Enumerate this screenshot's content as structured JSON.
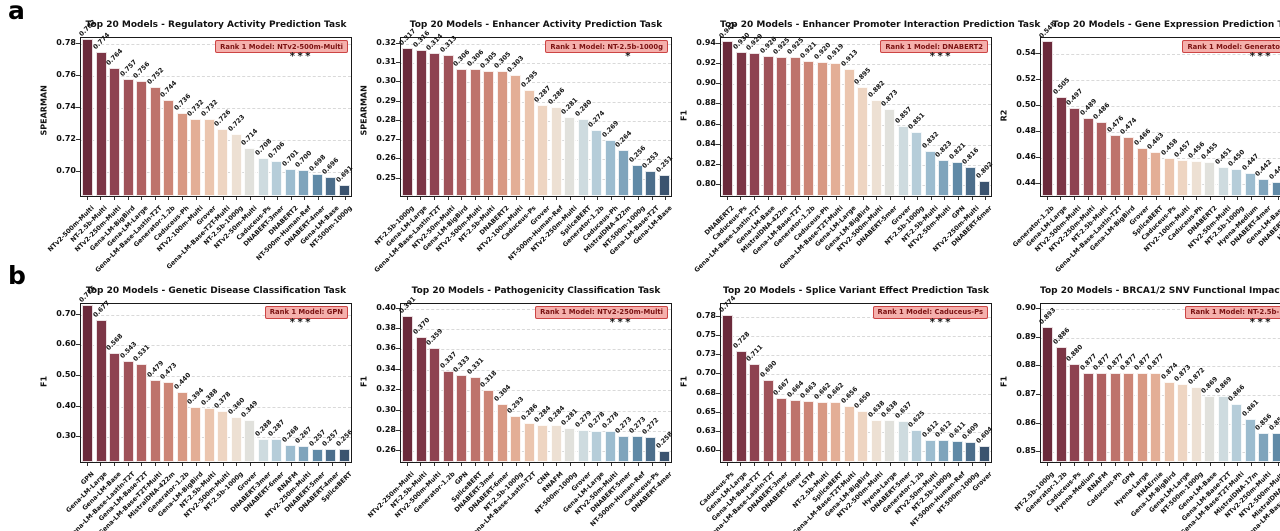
{
  "figure": {
    "panel_a": "a",
    "panel_b": "b"
  },
  "badge_prefix": "Rank 1 Model: ",
  "style": {
    "badge_bg": "#f5b0ac",
    "badge_border": "#cc4444",
    "badge_text": "#7a1212",
    "grid_color": "#d9d9d9",
    "palette_anchors": [
      "#6b2a3b",
      "#8c4050",
      "#ad5f60",
      "#c87f72",
      "#e0a58c",
      "#efd0ba",
      "#ece4da",
      "#c8d9e0",
      "#97b9cd",
      "#5d87a5",
      "#3a536f"
    ]
  },
  "chart_data": [
    {
      "type": "bar",
      "title": "Top 20 Models - Regulatory Activity Prediction Task",
      "ylabel": "SPEARMAN",
      "rank1": "NTv2-500m-Multi",
      "significance": "***",
      "ylim": [
        0.684,
        0.784
      ],
      "yticks": [
        0.7,
        0.72,
        0.74,
        0.76,
        0.78
      ],
      "ytick_labels": [
        "0.70",
        "0.72",
        "0.74",
        "0.76",
        "0.78"
      ],
      "categories": [
        "NTv2-500m-Multi",
        "NT-2.5b-Multi",
        "NTv2-250m-Multi",
        "Gena-LM-BigBird",
        "Gena-LM-Large",
        "Gena-LM-Base-Lastln-T2T",
        "Generator-1.2b",
        "Caduceus-Ph",
        "NTv2-100m-Multi",
        "Grover",
        "Gena-LM-Base-T2T-Multi",
        "NT-2.5b-1000g",
        "NTv2-50m-Multi",
        "Caduceus-Ps",
        "DNABERT-3mer",
        "DNABERT2",
        "NT-500m-Human-Ref",
        "DNABERT-4mer",
        "Gena-LM-Base",
        "NT-500m-1000g"
      ],
      "values": [
        0.782,
        0.774,
        0.764,
        0.757,
        0.756,
        0.752,
        0.744,
        0.736,
        0.732,
        0.732,
        0.726,
        0.723,
        0.714,
        0.708,
        0.706,
        0.701,
        0.7,
        0.698,
        0.696,
        0.691
      ]
    },
    {
      "type": "bar",
      "title": "Top 20 Models - Enhancer Activity Prediction Task",
      "ylabel": "SPEARMAN",
      "rank1": "NT-2.5b-1000g",
      "significance": "*",
      "ylim": [
        0.24,
        0.323
      ],
      "yticks": [
        0.25,
        0.26,
        0.27,
        0.28,
        0.29,
        0.3,
        0.31,
        0.32
      ],
      "ytick_labels": [
        "0.25",
        "0.26",
        "0.27",
        "0.28",
        "0.29",
        "0.30",
        "0.31",
        "0.32"
      ],
      "categories": [
        "NT-2.5b-1000g",
        "Gena-LM-Large",
        "Gena-LM-Base-Lastln-T2T",
        "NTv2-50m-Multi",
        "Gena-LM-BigBird",
        "NTv2-500m-Multi",
        "NT-2.5b-Multi",
        "DNABERT2",
        "NTv2-100m-Multi",
        "Caduceus-Ps",
        "Grover",
        "NT-500m-Human-Ref",
        "NTv2-250m-Multi",
        "SpliceBERT",
        "Generator-1.2b",
        "Caduceus-Ph",
        "MistralDNA-422m",
        "NT-500m-1000g",
        "Gena-LM-Base-T2T",
        "Gena-LM-Base"
      ],
      "values": [
        0.317,
        0.316,
        0.314,
        0.313,
        0.306,
        0.306,
        0.305,
        0.305,
        0.303,
        0.295,
        0.287,
        0.286,
        0.281,
        0.28,
        0.274,
        0.269,
        0.264,
        0.256,
        0.253,
        0.251
      ]
    },
    {
      "type": "bar",
      "title": "Top 20 Models - Enhancer Promoter Interaction Prediction Task",
      "ylabel": "F1",
      "rank1": "DNABERT2",
      "significance": "***",
      "ylim": [
        0.787,
        0.946
      ],
      "yticks": [
        0.8,
        0.82,
        0.84,
        0.86,
        0.88,
        0.9,
        0.92,
        0.94
      ],
      "ytick_labels": [
        "0.80",
        "0.82",
        "0.84",
        "0.86",
        "0.88",
        "0.90",
        "0.92",
        "0.94"
      ],
      "categories": [
        "DNABERT2",
        "Caduceus-Ps",
        "Gena-LM-Base-Lastln-T2T",
        "Gena-LM-Base",
        "MistralDNA-422m",
        "Gena-LM-Base-T2T",
        "Generator-1.2b",
        "Caduceus-Ph",
        "Gena-LM-Base-T2T-Multi",
        "Gena-LM-Large",
        "Gena-LM-BigBird",
        "NTv2-500m-Multi",
        "DNABERT-5mer",
        "Grover",
        "NT-2.5b-1000g",
        "NT-2.5b-Multi",
        "NTv2-50m-Multi",
        "GPN",
        "NTv2-250m-Multi",
        "DNABERT-6mer"
      ],
      "values": [
        0.941,
        0.93,
        0.929,
        0.926,
        0.925,
        0.925,
        0.921,
        0.92,
        0.919,
        0.913,
        0.895,
        0.882,
        0.873,
        0.857,
        0.851,
        0.832,
        0.823,
        0.821,
        0.816,
        0.802
      ]
    },
    {
      "type": "bar",
      "title": "Top 20 Models - Gene Expression Prediction Task",
      "ylabel": "R2",
      "rank1": "Generator-1.2b",
      "significance": "***",
      "ylim": [
        0.429,
        0.552
      ],
      "yticks": [
        0.44,
        0.46,
        0.48,
        0.5,
        0.52,
        0.54
      ],
      "ytick_labels": [
        "0.44",
        "0.46",
        "0.48",
        "0.50",
        "0.52",
        "0.54"
      ],
      "categories": [
        "Generator-1.2b",
        "Gena-LM-Large",
        "NTv2-500m-Multi",
        "NTv2-250m-Multi",
        "NT-2.5b-Multi",
        "Gena-LM-Base-Lastln-T2T",
        "Gena-LM-BigBird",
        "Grover",
        "SpliceBERT",
        "Caduceus-Ps",
        "NTv2-100m-Multi",
        "Caduceus-Ph",
        "DNABERT2",
        "NTv2-50m-Multi",
        "NT-2.5b-1000g",
        "Hyena-Medium",
        "DNABERT-4mer",
        "Gena-LM-Base",
        "DNABERT-3mer",
        "Hyena-Large"
      ],
      "values": [
        0.548,
        0.505,
        0.497,
        0.489,
        0.486,
        0.476,
        0.474,
        0.466,
        0.463,
        0.458,
        0.457,
        0.456,
        0.455,
        0.451,
        0.45,
        0.447,
        0.442,
        0.44,
        0.439,
        0.437
      ]
    },
    {
      "type": "bar",
      "title": "Top 20 Models - Genetic Disease Classification Task",
      "ylabel": "F1",
      "rank1": "GPN",
      "significance": "***",
      "ylim": [
        0.215,
        0.736
      ],
      "yticks": [
        0.3,
        0.4,
        0.5,
        0.6,
        0.7
      ],
      "ytick_labels": [
        "0.30",
        "0.40",
        "0.50",
        "0.60",
        "0.70"
      ],
      "categories": [
        "GPN",
        "Gena-LM-Large",
        "Gena-LM-Base",
        "Gena-LM-Base-Lastln-T2T",
        "Gena-LM-Base-T2T",
        "Gena-LM-Base-T2T-Multi",
        "MistralDNA-422m",
        "Generator-1.2b",
        "Gena-LM-BigBird",
        "NT-2.5b-Multi",
        "NTv2-500m-Multi",
        "NT-2.5b-1000g",
        "Grover",
        "DNABERT-3mer",
        "DNABERT-6mer",
        "RNAFM",
        "NTv2-250m-Multi",
        "DNABERT-5mer",
        "DNABERT-4mer",
        "SpliceBERT"
      ],
      "values": [
        0.725,
        0.677,
        0.568,
        0.543,
        0.531,
        0.479,
        0.473,
        0.44,
        0.394,
        0.388,
        0.378,
        0.36,
        0.349,
        0.288,
        0.287,
        0.268,
        0.267,
        0.257,
        0.257,
        0.256
      ]
    },
    {
      "type": "bar",
      "title": "Top 20 Models - Pathogenicity Classification Task",
      "ylabel": "F1",
      "rank1": "NTv2-250m-Multi",
      "significance": "***",
      "ylim": [
        0.248,
        0.405
      ],
      "yticks": [
        0.26,
        0.28,
        0.3,
        0.32,
        0.34,
        0.36,
        0.38,
        0.4
      ],
      "ytick_labels": [
        "0.26",
        "0.28",
        "0.30",
        "0.32",
        "0.34",
        "0.36",
        "0.38",
        "0.40"
      ],
      "categories": [
        "NTv2-250m-Multi",
        "NT-2.5b-Multi",
        "NTv2-500m-Multi",
        "Generator-1.2b",
        "GPN",
        "SpliceBERT",
        "DNABERT-3mer",
        "DNABERT-6mer",
        "NT-2.5b-1000g",
        "Gena-LM-Base-Lastln-T2T",
        "CNN",
        "RNAFM",
        "NT-500m-1000g",
        "Grover",
        "Gena-LM-Large",
        "NTv2-50m-Multi",
        "DNABERT-5mer",
        "NT-500m-Human-Ref",
        "Caduceus-Ps",
        "DNABERT-4mer"
      ],
      "values": [
        0.391,
        0.37,
        0.359,
        0.337,
        0.333,
        0.331,
        0.318,
        0.304,
        0.293,
        0.286,
        0.284,
        0.284,
        0.281,
        0.279,
        0.278,
        0.278,
        0.273,
        0.273,
        0.272,
        0.258
      ]
    },
    {
      "type": "bar",
      "title": "Top 20 Models - Splice Variant Effect Prediction Task",
      "ylabel": "F1",
      "rank1": "Caduceus-Ps",
      "significance": "***",
      "ylim": [
        0.584,
        0.792
      ],
      "yticks": [
        0.6,
        0.625,
        0.65,
        0.675,
        0.7,
        0.725,
        0.75,
        0.775
      ],
      "ytick_labels": [
        "0.60",
        "0.63",
        "0.65",
        "0.68",
        "0.70",
        "0.73",
        "0.75",
        "0.78"
      ],
      "categories": [
        "Caduceus-Ps",
        "Gena-LM-Large",
        "Gena-LM-Base-T2T",
        "Gena-LM-Base-Lastln-T2T",
        "DNABERT-3mer",
        "DNABERT-6mer",
        "LSTM",
        "NT-2.5b-Multi",
        "SpliceBERT",
        "Gena-LM-Base-T2T-Multi",
        "Gena-LM-BigBird",
        "NTv2-500m-Multi",
        "Hyena-Large",
        "DNABERT-5mer",
        "Generator-1.2b",
        "NTv2-50m-Multi",
        "NT-2.5b-1000g",
        "NT-500m-Human-Ref",
        "NT-500m-1000g",
        "Grover"
      ],
      "values": [
        0.774,
        0.728,
        0.711,
        0.69,
        0.667,
        0.664,
        0.663,
        0.662,
        0.662,
        0.656,
        0.65,
        0.638,
        0.638,
        0.637,
        0.625,
        0.612,
        0.612,
        0.611,
        0.609,
        0.604
      ]
    },
    {
      "type": "bar",
      "title": "Top 20 Models - BRCA1/2 SNV Functional Impact Classification Task",
      "ylabel": "F1",
      "rank1": "NT-2.5b-1000g",
      "significance": "***",
      "ylim": [
        0.846,
        0.902
      ],
      "yticks": [
        0.85,
        0.86,
        0.87,
        0.88,
        0.89,
        0.9
      ],
      "ytick_labels": [
        "0.85",
        "0.86",
        "0.87",
        "0.88",
        "0.89",
        "0.90"
      ],
      "categories": [
        "NT-2.5b-1000g",
        "Generator-1.2b",
        "Caduceus-Ps",
        "Hyena-Medium",
        "RNAFM",
        "Caduceus-Ph",
        "GPN",
        "Hyena-Large",
        "RNAErnie",
        "Gena-LM-BigBird",
        "Gena-LM-Large",
        "NT-500m-1000g",
        "Gena-LM-Base",
        "Gena-LM-Base-T2T",
        "Gena-LM-Base-T2T-Multi",
        "MistralDNA-17m",
        "NTv2-250m-Multi",
        "NTv2-500m-Multi",
        "MistralDNA-422m",
        "Gena-LM-Base-Lastln-T2T"
      ],
      "values": [
        0.893,
        0.886,
        0.88,
        0.877,
        0.877,
        0.877,
        0.877,
        0.877,
        0.877,
        0.874,
        0.873,
        0.872,
        0.869,
        0.869,
        0.866,
        0.861,
        0.856,
        0.856,
        0.856,
        0.855
      ]
    }
  ]
}
